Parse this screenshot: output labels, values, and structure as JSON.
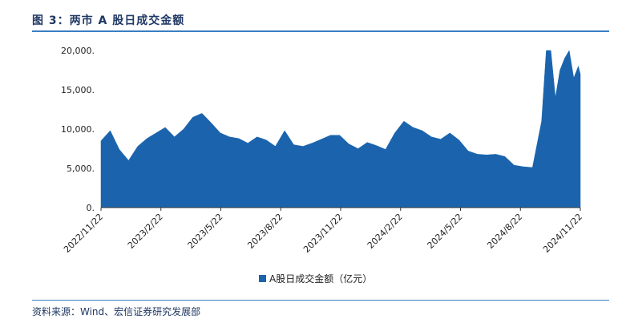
{
  "header": {
    "title": "图 3：两市 A 股日成交金额"
  },
  "footer": {
    "source": "资料来源：Wind、宏信证券研究发展部"
  },
  "chart_data": {
    "type": "area",
    "title": "",
    "xlabel": "",
    "ylabel": "",
    "ylim": [
      0,
      20000
    ],
    "yticks": [
      "0.",
      "5,000.",
      "10,000.",
      "15,000.",
      "20,000."
    ],
    "ytick_values": [
      0,
      5000,
      10000,
      15000,
      20000
    ],
    "xticks": [
      "2022/11/22",
      "2023/2/22",
      "2023/5/22",
      "2023/8/22",
      "2023/11/22",
      "2024/2/22",
      "2024/5/22",
      "2024/8/22",
      "2024/11/22"
    ],
    "grid": false,
    "legend": "bottom-center",
    "color": "#1b64ad",
    "series": [
      {
        "name": "A股日成交金额（亿元）",
        "x": [
          "2022/11/22",
          "2022/12/06",
          "2022/12/20",
          "2023/01/03",
          "2023/01/17",
          "2023/01/31",
          "2023/02/14",
          "2023/02/28",
          "2023/03/14",
          "2023/03/28",
          "2023/04/11",
          "2023/04/25",
          "2023/05/09",
          "2023/05/23",
          "2023/06/06",
          "2023/06/20",
          "2023/07/04",
          "2023/07/18",
          "2023/08/01",
          "2023/08/15",
          "2023/08/29",
          "2023/09/12",
          "2023/09/26",
          "2023/10/10",
          "2023/10/24",
          "2023/11/07",
          "2023/11/21",
          "2023/12/05",
          "2023/12/19",
          "2024/01/02",
          "2024/01/16",
          "2024/01/30",
          "2024/02/13",
          "2024/02/27",
          "2024/03/12",
          "2024/03/26",
          "2024/04/09",
          "2024/04/23",
          "2024/05/07",
          "2024/05/21",
          "2024/06/04",
          "2024/06/18",
          "2024/07/02",
          "2024/07/16",
          "2024/07/30",
          "2024/08/13",
          "2024/08/27",
          "2024/09/10",
          "2024/09/24",
          "2024/10/01",
          "2024/10/08",
          "2024/10/15",
          "2024/10/22",
          "2024/10/29",
          "2024/11/05",
          "2024/11/12",
          "2024/11/19",
          "2024/11/22"
        ],
        "values": [
          8500,
          9800,
          7400,
          6000,
          7800,
          8800,
          9500,
          10200,
          9000,
          10000,
          11500,
          12000,
          10800,
          9500,
          9000,
          8800,
          8200,
          9000,
          8600,
          7800,
          9800,
          8000,
          7800,
          8200,
          8700,
          9200,
          9200,
          8100,
          7500,
          8300,
          7900,
          7400,
          9500,
          11000,
          10200,
          9800,
          9000,
          8700,
          9500,
          8600,
          7200,
          6800,
          6700,
          6800,
          6500,
          5400,
          5200,
          5100,
          11000,
          20000,
          20000,
          14000,
          17500,
          19000,
          20000,
          16500,
          18000,
          17000
        ]
      }
    ]
  }
}
